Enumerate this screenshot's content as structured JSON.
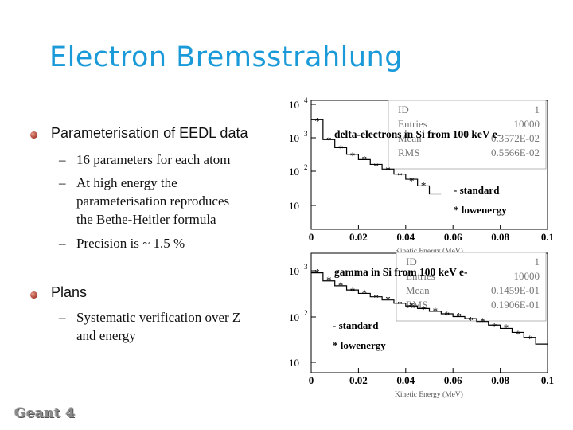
{
  "slide": {
    "title": "Electron Bremsstrahlung",
    "bullets": [
      {
        "text": "Parameterisation of EEDL data",
        "subitems": [
          [
            "16 parameters for each atom"
          ],
          [
            "At high energy the",
            "parameterisation reproduces",
            "the Bethe-Heitler formula"
          ],
          [
            "Precision is ~ 1.5 %"
          ]
        ]
      },
      {
        "text": "Plans",
        "subitems": [
          [
            "Systematic verification over Z",
            "and energy"
          ]
        ]
      }
    ],
    "dash": "–",
    "logo_text": "Geant 4"
  },
  "chart_data": [
    {
      "type": "histogram",
      "title": "delta-electrons in Si from 100 keV e-",
      "xlabel": "Kinetic Energy (MeV)",
      "x_ticks": [
        "0",
        "0.02",
        "0.04",
        "0.06",
        "0.08",
        "0.1"
      ],
      "y_ticks": [
        "10",
        "10 2",
        "10 3",
        "10 4"
      ],
      "log_y": true,
      "xlim": [
        0,
        0.1
      ],
      "stats": [
        [
          "ID",
          "1"
        ],
        [
          "Entries",
          "10000"
        ],
        [
          "Mean",
          "0.3572E-02"
        ],
        [
          "RMS",
          "0.5566E-02"
        ]
      ],
      "legend": [
        "- standard",
        "* lowenergy"
      ],
      "series": [
        {
          "name": "standard",
          "style": "histogram",
          "x": [
            0.0025,
            0.0075,
            0.0125,
            0.0175,
            0.0225,
            0.0275,
            0.0325,
            0.0375,
            0.0425,
            0.0475,
            0.0525
          ],
          "y": [
            3500,
            900,
            520,
            330,
            230,
            165,
            120,
            85,
            60,
            38,
            22
          ]
        },
        {
          "name": "lowenergy",
          "style": "markers",
          "x": [
            0.0025,
            0.0075,
            0.0125,
            0.0175,
            0.0225,
            0.0275,
            0.0325,
            0.0375,
            0.0425,
            0.0475
          ],
          "y": [
            3300,
            880,
            500,
            310,
            240,
            150,
            115,
            80,
            55,
            40
          ]
        }
      ]
    },
    {
      "type": "histogram",
      "title": "gamma in Si from 100 keV e-",
      "xlabel": "Kinetic Energy (MeV)",
      "x_ticks": [
        "0",
        "0.02",
        "0.04",
        "0.06",
        "0.08",
        "0.1"
      ],
      "y_ticks": [
        "10",
        "10 2",
        "10 3"
      ],
      "log_y": true,
      "xlim": [
        0,
        0.1
      ],
      "stats": [
        [
          "ID",
          "1"
        ],
        [
          "Entries",
          "10000"
        ],
        [
          "Mean",
          "0.1459E-01"
        ],
        [
          "RMS",
          "0.1906E-01"
        ]
      ],
      "legend": [
        "- standard",
        "* lowenergy"
      ],
      "series": [
        {
          "name": "standard",
          "style": "histogram",
          "x": [
            0.0025,
            0.0075,
            0.0125,
            0.0175,
            0.0225,
            0.0275,
            0.0325,
            0.0375,
            0.0425,
            0.0475,
            0.0525,
            0.0575,
            0.0625,
            0.0675,
            0.0725,
            0.0775,
            0.0825,
            0.0875,
            0.0925,
            0.0975
          ],
          "y": [
            900,
            600,
            470,
            380,
            320,
            270,
            230,
            195,
            170,
            150,
            130,
            115,
            100,
            90,
            78,
            65,
            55,
            45,
            35,
            25
          ]
        },
        {
          "name": "lowenergy",
          "style": "markers",
          "x": [
            0.0025,
            0.0075,
            0.0125,
            0.0175,
            0.0225,
            0.0275,
            0.0325,
            0.0375,
            0.0425,
            0.0475,
            0.0525,
            0.0575,
            0.0625,
            0.0675,
            0.0725,
            0.0775,
            0.0825,
            0.0875,
            0.0925
          ],
          "y": [
            950,
            640,
            490,
            370,
            330,
            260,
            240,
            190,
            175,
            145,
            135,
            110,
            105,
            85,
            80,
            62,
            58,
            42,
            33
          ]
        }
      ]
    }
  ]
}
